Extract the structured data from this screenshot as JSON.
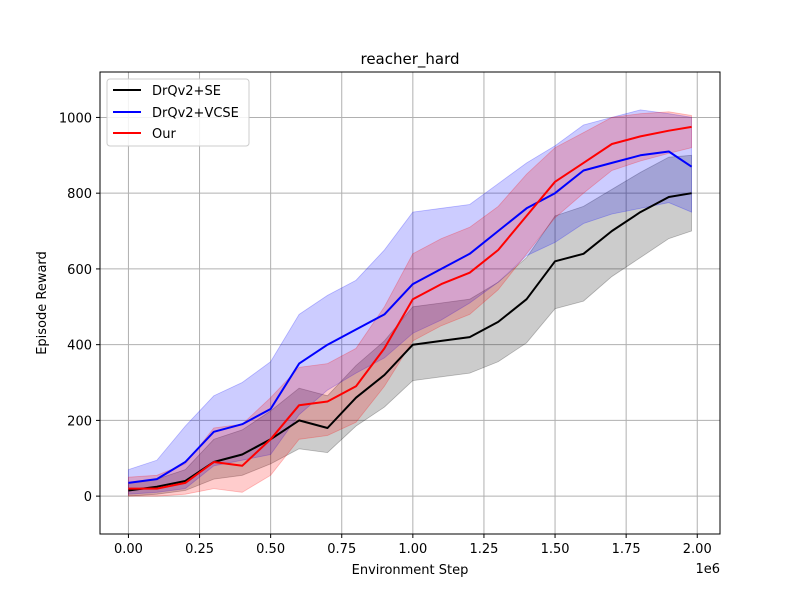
{
  "chart_data": {
    "type": "line",
    "title": "reacher_hard",
    "xlabel": "Environment Step",
    "ylabel": "Episode Reward",
    "x_offset_label": "1e6",
    "xlim": [
      -100000,
      2080000
    ],
    "ylim": [
      -100,
      1120
    ],
    "xticks": [
      0,
      250000,
      500000,
      750000,
      1000000,
      1250000,
      1500000,
      1750000,
      2000000
    ],
    "xtick_labels": [
      "0.00",
      "0.25",
      "0.50",
      "0.75",
      "1.00",
      "1.25",
      "1.50",
      "1.75",
      "2.00"
    ],
    "yticks": [
      0,
      200,
      400,
      600,
      800,
      1000
    ],
    "ytick_labels": [
      "0",
      "200",
      "400",
      "600",
      "800",
      "1000"
    ],
    "grid": true,
    "legend_position": "top-left",
    "series": [
      {
        "name": "DrQv2+SE",
        "color": "#000000",
        "x": [
          0,
          100000,
          200000,
          300000,
          400000,
          500000,
          600000,
          700000,
          800000,
          900000,
          1000000,
          1100000,
          1200000,
          1300000,
          1400000,
          1500000,
          1600000,
          1700000,
          1800000,
          1900000,
          1980000
        ],
        "values": [
          15,
          25,
          40,
          90,
          110,
          150,
          200,
          180,
          260,
          320,
          400,
          410,
          420,
          460,
          520,
          620,
          640,
          700,
          750,
          790,
          800
        ],
        "lower": [
          0,
          5,
          15,
          45,
          55,
          85,
          125,
          115,
          185,
          235,
          305,
          315,
          325,
          355,
          405,
          495,
          515,
          580,
          630,
          680,
          700
        ],
        "upper": [
          35,
          45,
          70,
          150,
          175,
          225,
          285,
          265,
          345,
          410,
          500,
          510,
          520,
          565,
          630,
          740,
          765,
          810,
          855,
          895,
          900
        ]
      },
      {
        "name": "DrQv2+VCSE",
        "color": "#0000ff",
        "x": [
          0,
          100000,
          200000,
          300000,
          400000,
          500000,
          600000,
          700000,
          800000,
          900000,
          1000000,
          1100000,
          1200000,
          1300000,
          1400000,
          1500000,
          1600000,
          1700000,
          1800000,
          1900000,
          1980000
        ],
        "values": [
          35,
          45,
          90,
          170,
          190,
          230,
          350,
          400,
          440,
          480,
          560,
          600,
          640,
          700,
          760,
          800,
          860,
          880,
          900,
          910,
          870
        ],
        "lower": [
          5,
          10,
          20,
          80,
          95,
          110,
          215,
          280,
          325,
          365,
          430,
          465,
          510,
          565,
          635,
          670,
          720,
          745,
          760,
          775,
          750
        ],
        "upper": [
          70,
          95,
          185,
          265,
          300,
          355,
          480,
          530,
          570,
          650,
          750,
          760,
          770,
          825,
          880,
          925,
          980,
          1000,
          1020,
          1010,
          1000
        ]
      },
      {
        "name": "Our",
        "color": "#ff0000",
        "x": [
          0,
          100000,
          200000,
          300000,
          400000,
          500000,
          600000,
          700000,
          800000,
          900000,
          1000000,
          1100000,
          1200000,
          1300000,
          1400000,
          1500000,
          1600000,
          1700000,
          1800000,
          1900000,
          1980000
        ],
        "values": [
          20,
          20,
          35,
          90,
          80,
          150,
          240,
          250,
          290,
          390,
          520,
          560,
          590,
          650,
          740,
          830,
          880,
          930,
          950,
          965,
          975
        ],
        "lower": [
          0,
          0,
          5,
          20,
          10,
          55,
          150,
          160,
          195,
          290,
          410,
          450,
          480,
          545,
          640,
          735,
          800,
          860,
          885,
          905,
          920
        ],
        "upper": [
          50,
          55,
          85,
          180,
          190,
          260,
          340,
          350,
          390,
          500,
          640,
          680,
          710,
          765,
          850,
          920,
          960,
          1000,
          1010,
          1015,
          1005
        ]
      }
    ]
  }
}
